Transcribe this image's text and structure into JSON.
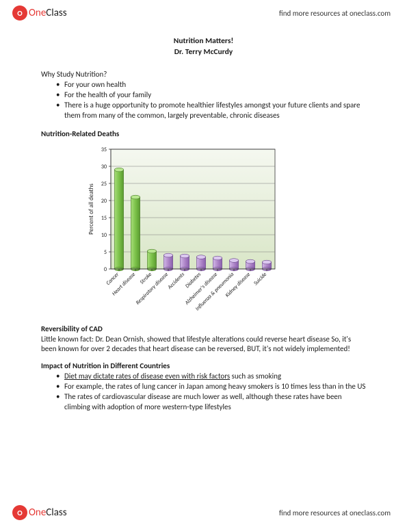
{
  "header": {
    "logo_one": "One",
    "logo_class": "Class",
    "link_text": "find more resources at oneclass.com"
  },
  "title": {
    "line1": "Nutrition Matters!",
    "line2": "Dr. Terry McCurdy"
  },
  "why": {
    "heading": "Why Study Nutrition?",
    "items": [
      "For your own health",
      "For the health of your family",
      "There is a huge opportunity to promote healthier lifestyles amongst your future clients and spare them from many of the common, largely preventable, chronic diseases"
    ]
  },
  "deaths_heading": "Nutrition-Related Deaths",
  "chart": {
    "type": "bar",
    "ylabel": "Percent of all deaths",
    "label_fontsize": 9,
    "tick_fontsize": 8,
    "ylim": [
      0,
      35
    ],
    "ytick_step": 5,
    "background_top": "#f5f8f0",
    "background_bottom": "#d9e6c7",
    "grid_color": "#7a7a7a",
    "axis_color": "#333333",
    "bar_width": 0.55,
    "categories": [
      "Cancer",
      "Heart disease",
      "Stroke",
      "Respiratory disease",
      "Accidents",
      "Diabetes",
      "Alzheimer's disease",
      "Influenza & pneumonia",
      "Kidney disease",
      "Suicide"
    ],
    "values": [
      29,
      21,
      5.2,
      4,
      3.8,
      3.5,
      3.2,
      2.5,
      2.2,
      2
    ],
    "bar_colors": [
      "#7cc24a",
      "#7cc24a",
      "#7cc24a",
      "#b088c9",
      "#b088c9",
      "#b088c9",
      "#b088c9",
      "#b088c9",
      "#b088c9",
      "#b088c9"
    ],
    "bar_edge": "#4a7a2a",
    "bar_edge_purple": "#6a4a8a"
  },
  "cad": {
    "heading": "Reversibility of CAD",
    "text": "Little known fact: Dr. Dean Ornish, showed that lifestyle alterations could reverse heart disease So, it's been known for over 2 decades that heart disease can be reversed, BUT, it's not widely implemented!"
  },
  "impact": {
    "heading": "Impact of Nutrition in Different Countries",
    "item1_underlined": "Diet may dictate rates of disease even with risk factors",
    "item1_rest": " such as smoking",
    "items_rest": [
      "For example, the rates of lung cancer in Japan among heavy smokers is 10 times less than in the US",
      "The rates of cardiovascular disease are much lower as well, although these rates have been climbing with adoption of more western-type lifestyles"
    ]
  },
  "footer": {
    "link_text": "find more resources at oneclass.com"
  }
}
